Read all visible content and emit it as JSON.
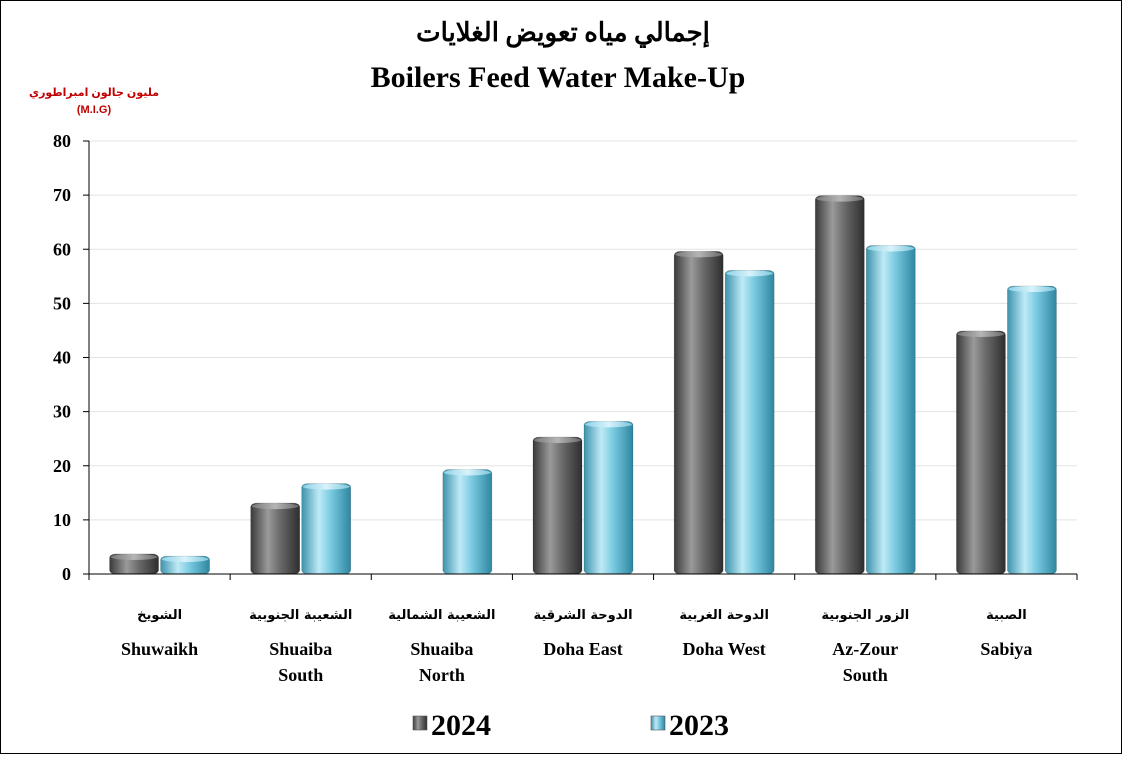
{
  "chart_data": {
    "type": "bar",
    "title_ar": "إجمالي مياه تعويض الغلايات",
    "title": "Boilers Feed Water Make-Up",
    "unit_ar": "مليون جالون امبراطوري",
    "unit": "(M.I.G)",
    "ylim": [
      0,
      80
    ],
    "yticks": [
      0,
      10,
      20,
      30,
      40,
      50,
      60,
      70,
      80
    ],
    "grid": true,
    "legend_position": "bottom",
    "categories": [
      {
        "ar": "الشويخ",
        "en": [
          "Shuwaikh"
        ]
      },
      {
        "ar": "الشعيبة الجنوبية",
        "en": [
          "Shuaiba",
          "South"
        ]
      },
      {
        "ar": "الشعيبة الشمالية",
        "en": [
          "Shuaiba",
          "North"
        ]
      },
      {
        "ar": "الدوحة الشرقية",
        "en": [
          "Doha East"
        ]
      },
      {
        "ar": "الدوحة الغربية",
        "en": [
          "Doha West"
        ]
      },
      {
        "ar": "الزور الجنوبية",
        "en": [
          "Az-Zour",
          "South"
        ]
      },
      {
        "ar": "الصبية",
        "en": [
          "Sabiya"
        ]
      }
    ],
    "series": [
      {
        "name": "2024",
        "color": "#5f5f5f",
        "values": [
          3.7,
          13.1,
          0,
          25.3,
          59.6,
          69.9,
          44.9
        ]
      },
      {
        "name": "2023",
        "color": "#6ec3dc",
        "values": [
          3.3,
          16.7,
          19.3,
          28.2,
          56.1,
          60.7,
          53.2
        ]
      }
    ]
  }
}
